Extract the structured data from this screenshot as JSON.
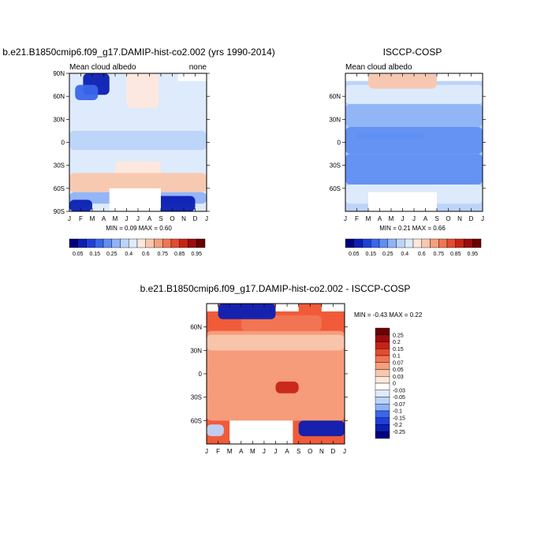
{
  "colors": {
    "frame": "#000000",
    "land_mask": "#ffffff"
  },
  "chart_data": [
    {
      "type": "heatmap",
      "title": "b.e21.B1850cmip6.f09_g17.DAMIP-hist-co2.002 (yrs 1990-2014)",
      "left_label": "Mean cloud albedo",
      "right_label": "none",
      "stats_text": "MIN =   0.09 MAX =   0.60",
      "min": 0.09,
      "max": 0.6,
      "x_ticks": [
        "J",
        "F",
        "M",
        "A",
        "M",
        "J",
        "J",
        "A",
        "S",
        "O",
        "N",
        "D",
        "J"
      ],
      "y_ticks": [
        "90N",
        "60N",
        "30N",
        "0",
        "30S",
        "60S",
        "90S"
      ],
      "colorbar": {
        "labels": [
          "0.05",
          "0.15",
          "0.25",
          "0.4",
          "0.6",
          "0.75",
          "0.85",
          "0.95"
        ],
        "colors": [
          "#00007f",
          "#0a1fb3",
          "#1f3fd9",
          "#3a66ea",
          "#5f8ff2",
          "#8fb3f6",
          "#bcd4fa",
          "#deebfc",
          "#fde8dc",
          "#f9c7ad",
          "#f5a07d",
          "#f07654",
          "#e54b31",
          "#c72317",
          "#9c0c0c",
          "#6b0000"
        ]
      },
      "regions": [
        {
          "lat": [
            70,
            90
          ],
          "months": [
            0,
            1.5
          ],
          "level": 0.45
        },
        {
          "lat": [
            62,
            90
          ],
          "months": [
            1.2,
            3.5
          ],
          "level": 0.09
        },
        {
          "lat": [
            55,
            75
          ],
          "months": [
            0.5,
            2.5
          ],
          "level": 0.2
        },
        {
          "lat": [
            45,
            90
          ],
          "months": [
            5,
            7.8
          ],
          "level": 0.55
        },
        {
          "lat": [
            15,
            40
          ],
          "months": [
            0,
            12
          ],
          "level": 0.45
        },
        {
          "lat": [
            -10,
            15
          ],
          "months": [
            0,
            12
          ],
          "level": 0.38
        },
        {
          "lat": [
            -45,
            -25
          ],
          "months": [
            4,
            8
          ],
          "level": 0.55
        },
        {
          "lat": [
            -65,
            -40
          ],
          "months": [
            0,
            12
          ],
          "level": 0.58
        },
        {
          "lat": [
            -80,
            -65
          ],
          "months": [
            0,
            12
          ],
          "level": 0.35
        },
        {
          "lat": [
            -90,
            -70
          ],
          "months": [
            7,
            11
          ],
          "level": 0.1
        },
        {
          "lat": [
            -90,
            -75
          ],
          "months": [
            0,
            2
          ],
          "level": 0.1
        }
      ],
      "masks": [
        {
          "lat": [
            80,
            90
          ],
          "months": [
            9.5,
            12
          ]
        },
        {
          "lat": [
            -90,
            -60
          ],
          "months": [
            3.5,
            8
          ]
        }
      ]
    },
    {
      "type": "heatmap",
      "title": "ISCCP-COSP",
      "left_label": "Mean cloud albedo",
      "stats_text": "MIN =   0.21 MAX =   0.66",
      "min": 0.21,
      "max": 0.66,
      "x_ticks": [
        "J",
        "F",
        "M",
        "A",
        "M",
        "J",
        "J",
        "A",
        "S",
        "O",
        "N",
        "D",
        "J"
      ],
      "y_ticks": [
        "60N",
        "30N",
        "0",
        "30S",
        "60S"
      ],
      "colorbar": {
        "labels": [
          "0.05",
          "0.15",
          "0.25",
          "0.4",
          "0.6",
          "0.75",
          "0.85",
          "0.95"
        ],
        "colors": [
          "#00007f",
          "#0a1fb3",
          "#1f3fd9",
          "#3a66ea",
          "#5f8ff2",
          "#8fb3f6",
          "#bcd4fa",
          "#deebfc",
          "#fde8dc",
          "#f9c7ad",
          "#f5a07d",
          "#f07654",
          "#e54b31",
          "#c72317",
          "#9c0c0c",
          "#6b0000"
        ]
      },
      "regions": [
        {
          "lat": [
            50,
            75
          ],
          "months": [
            0,
            12
          ],
          "level": 0.45
        },
        {
          "lat": [
            20,
            50
          ],
          "months": [
            0,
            12
          ],
          "level": 0.35
        },
        {
          "lat": [
            -15,
            20
          ],
          "months": [
            0,
            12
          ],
          "level": 0.3
        },
        {
          "lat": [
            5,
            12
          ],
          "months": [
            1,
            7
          ],
          "level": 0.25
        },
        {
          "lat": [
            -55,
            -15
          ],
          "months": [
            0,
            12
          ],
          "level": 0.3
        },
        {
          "lat": [
            -80,
            -55
          ],
          "months": [
            0,
            12
          ],
          "level": 0.45
        },
        {
          "lat": [
            70,
            90
          ],
          "months": [
            2,
            8
          ],
          "level": 0.6
        }
      ],
      "masks": [
        {
          "lat": [
            80,
            90
          ],
          "months": [
            0,
            2
          ]
        },
        {
          "lat": [
            80,
            90
          ],
          "months": [
            8,
            12
          ]
        },
        {
          "lat": [
            -90,
            -65
          ],
          "months": [
            2,
            8
          ]
        }
      ]
    },
    {
      "type": "heatmap",
      "title": "b.e21.B1850cmip6.f09_g17.DAMIP-hist-co2.002 - ISCCP-COSP",
      "stats_text": "MIN =  -0.43 MAX =   0.22",
      "min": -0.43,
      "max": 0.22,
      "x_ticks": [
        "J",
        "F",
        "M",
        "A",
        "M",
        "J",
        "J",
        "A",
        "S",
        "O",
        "N",
        "D",
        "J"
      ],
      "y_ticks": [
        "60N",
        "30N",
        "0",
        "30S",
        "60S"
      ],
      "colorbar": {
        "labels": [
          "0.25",
          "0.2",
          "0.15",
          "0.1",
          "0.07",
          "0.05",
          "0.03",
          "0",
          "-0.03",
          "-0.05",
          "-0.07",
          "-0.1",
          "-0.15",
          "-0.2",
          "-0.25"
        ],
        "colors": [
          "#6b0000",
          "#9c0c0c",
          "#c72317",
          "#e54b31",
          "#f07654",
          "#f5a07d",
          "#f9c7ad",
          "#fde8dc",
          "#ffffff",
          "#deebfc",
          "#bcd4fa",
          "#8fb3f6",
          "#3a66ea",
          "#1f3fd9",
          "#0a1fb3",
          "#00007f"
        ]
      },
      "regions": [
        {
          "lat": [
            -60,
            55
          ],
          "months": [
            0,
            12
          ],
          "level": 0.1
        },
        {
          "lat": [
            55,
            75
          ],
          "months": [
            3,
            10
          ],
          "level": 0.15
        },
        {
          "lat": [
            30,
            50
          ],
          "months": [
            0,
            12
          ],
          "level": 0.05
        },
        {
          "lat": [
            70,
            90
          ],
          "months": [
            1,
            6
          ],
          "level": -0.25
        },
        {
          "lat": [
            -25,
            -10
          ],
          "months": [
            6,
            8
          ],
          "level": 0.2
        },
        {
          "lat": [
            -80,
            -60
          ],
          "months": [
            8,
            12
          ],
          "level": -0.25
        },
        {
          "lat": [
            -80,
            -65
          ],
          "months": [
            0,
            1.5
          ],
          "level": -0.1
        }
      ],
      "masks": [
        {
          "lat": [
            80,
            90
          ],
          "months": [
            0,
            1
          ]
        },
        {
          "lat": [
            80,
            90
          ],
          "months": [
            6,
            8
          ]
        },
        {
          "lat": [
            80,
            90
          ],
          "months": [
            10,
            12
          ]
        },
        {
          "lat": [
            -90,
            -60
          ],
          "months": [
            2,
            7.5
          ]
        }
      ]
    }
  ]
}
